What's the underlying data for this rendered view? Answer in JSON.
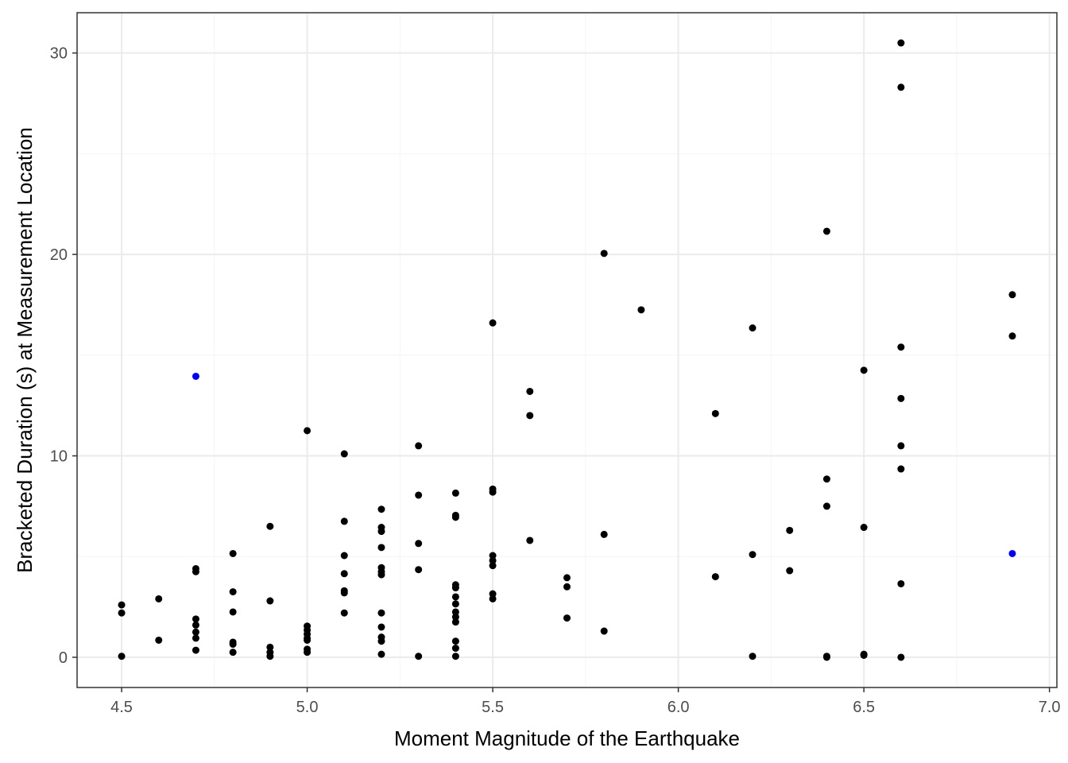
{
  "chart_data": {
    "type": "scatter",
    "title": "",
    "xlabel": "Moment Magnitude of the Earthquake",
    "ylabel": "Bracketed Duration (s) at Measurement Location",
    "xlim": [
      4.38,
      7.02
    ],
    "ylim": [
      -1.5,
      32.0
    ],
    "x_ticks": [
      4.5,
      5.0,
      5.5,
      6.0,
      6.5,
      7.0
    ],
    "x_tick_labels": [
      "4.5",
      "5.0",
      "5.5",
      "6.0",
      "6.5",
      "7.0"
    ],
    "y_ticks": [
      0,
      10,
      20,
      30
    ],
    "y_tick_labels": [
      "0",
      "10",
      "20",
      "30"
    ],
    "x_minor_ticks": [
      4.75,
      5.25,
      5.75,
      6.25,
      6.75
    ],
    "y_minor_ticks": [
      5,
      15,
      25
    ],
    "grid": true,
    "legend": "none",
    "colors": {
      "default": "#000000",
      "highlight": "#0000ff",
      "grid_major": "#ebebeb",
      "grid_minor": "#f4f4f4",
      "border": "#333333"
    },
    "series": [
      {
        "color": "#000000",
        "points": [
          [
            4.5,
            2.6
          ],
          [
            4.5,
            2.2
          ],
          [
            4.5,
            0.05
          ],
          [
            4.6,
            2.9
          ],
          [
            4.6,
            0.85
          ],
          [
            4.7,
            4.4
          ],
          [
            4.7,
            4.25
          ],
          [
            4.7,
            1.9
          ],
          [
            4.7,
            1.6
          ],
          [
            4.7,
            1.25
          ],
          [
            4.7,
            0.95
          ],
          [
            4.7,
            0.35
          ],
          [
            4.8,
            5.15
          ],
          [
            4.8,
            3.25
          ],
          [
            4.8,
            2.25
          ],
          [
            4.8,
            0.75
          ],
          [
            4.8,
            0.65
          ],
          [
            4.8,
            0.25
          ],
          [
            4.9,
            6.5
          ],
          [
            4.9,
            2.8
          ],
          [
            4.9,
            0.5
          ],
          [
            4.9,
            0.25
          ],
          [
            4.9,
            0.05
          ],
          [
            5.0,
            11.25
          ],
          [
            5.0,
            1.55
          ],
          [
            5.0,
            1.35
          ],
          [
            5.0,
            1.15
          ],
          [
            5.0,
            0.95
          ],
          [
            5.0,
            0.85
          ],
          [
            5.0,
            0.4
          ],
          [
            5.0,
            0.25
          ],
          [
            5.1,
            10.1
          ],
          [
            5.1,
            6.75
          ],
          [
            5.1,
            5.05
          ],
          [
            5.1,
            4.15
          ],
          [
            5.1,
            3.3
          ],
          [
            5.1,
            3.2
          ],
          [
            5.1,
            2.2
          ],
          [
            5.2,
            7.35
          ],
          [
            5.2,
            6.45
          ],
          [
            5.2,
            6.25
          ],
          [
            5.2,
            5.45
          ],
          [
            5.2,
            4.45
          ],
          [
            5.2,
            4.25
          ],
          [
            5.2,
            4.1
          ],
          [
            5.2,
            2.2
          ],
          [
            5.2,
            1.5
          ],
          [
            5.2,
            1.0
          ],
          [
            5.2,
            0.8
          ],
          [
            5.2,
            0.15
          ],
          [
            5.3,
            10.5
          ],
          [
            5.3,
            8.05
          ],
          [
            5.3,
            5.65
          ],
          [
            5.3,
            4.35
          ],
          [
            5.3,
            0.05
          ],
          [
            5.4,
            8.15
          ],
          [
            5.4,
            7.05
          ],
          [
            5.4,
            6.95
          ],
          [
            5.4,
            3.6
          ],
          [
            5.4,
            3.45
          ],
          [
            5.4,
            3.0
          ],
          [
            5.4,
            2.65
          ],
          [
            5.4,
            2.25
          ],
          [
            5.4,
            2.0
          ],
          [
            5.4,
            1.75
          ],
          [
            5.4,
            0.8
          ],
          [
            5.4,
            0.45
          ],
          [
            5.4,
            0.05
          ],
          [
            5.5,
            16.6
          ],
          [
            5.5,
            8.35
          ],
          [
            5.5,
            8.2
          ],
          [
            5.5,
            5.05
          ],
          [
            5.5,
            4.8
          ],
          [
            5.5,
            4.55
          ],
          [
            5.5,
            3.15
          ],
          [
            5.5,
            2.9
          ],
          [
            5.6,
            13.2
          ],
          [
            5.6,
            12.0
          ],
          [
            5.6,
            5.8
          ],
          [
            5.7,
            3.95
          ],
          [
            5.7,
            3.5
          ],
          [
            5.7,
            1.95
          ],
          [
            5.8,
            20.05
          ],
          [
            5.8,
            6.1
          ],
          [
            5.8,
            1.3
          ],
          [
            5.9,
            17.25
          ],
          [
            6.1,
            12.1
          ],
          [
            6.1,
            4.0
          ],
          [
            6.2,
            16.35
          ],
          [
            6.2,
            5.1
          ],
          [
            6.2,
            0.05
          ],
          [
            6.3,
            6.3
          ],
          [
            6.3,
            4.3
          ],
          [
            6.4,
            21.15
          ],
          [
            6.4,
            8.85
          ],
          [
            6.4,
            7.5
          ],
          [
            6.4,
            0.05
          ],
          [
            6.4,
            0.0
          ],
          [
            6.5,
            14.25
          ],
          [
            6.5,
            6.45
          ],
          [
            6.5,
            0.15
          ],
          [
            6.5,
            0.1
          ],
          [
            6.6,
            30.5
          ],
          [
            6.6,
            28.3
          ],
          [
            6.6,
            15.4
          ],
          [
            6.6,
            12.85
          ],
          [
            6.6,
            10.5
          ],
          [
            6.6,
            9.35
          ],
          [
            6.6,
            3.65
          ],
          [
            6.6,
            0.0
          ],
          [
            6.9,
            18.0
          ],
          [
            6.9,
            15.95
          ]
        ]
      },
      {
        "color": "#0000ff",
        "points": [
          [
            4.7,
            13.95
          ],
          [
            6.9,
            5.15
          ]
        ]
      }
    ]
  }
}
